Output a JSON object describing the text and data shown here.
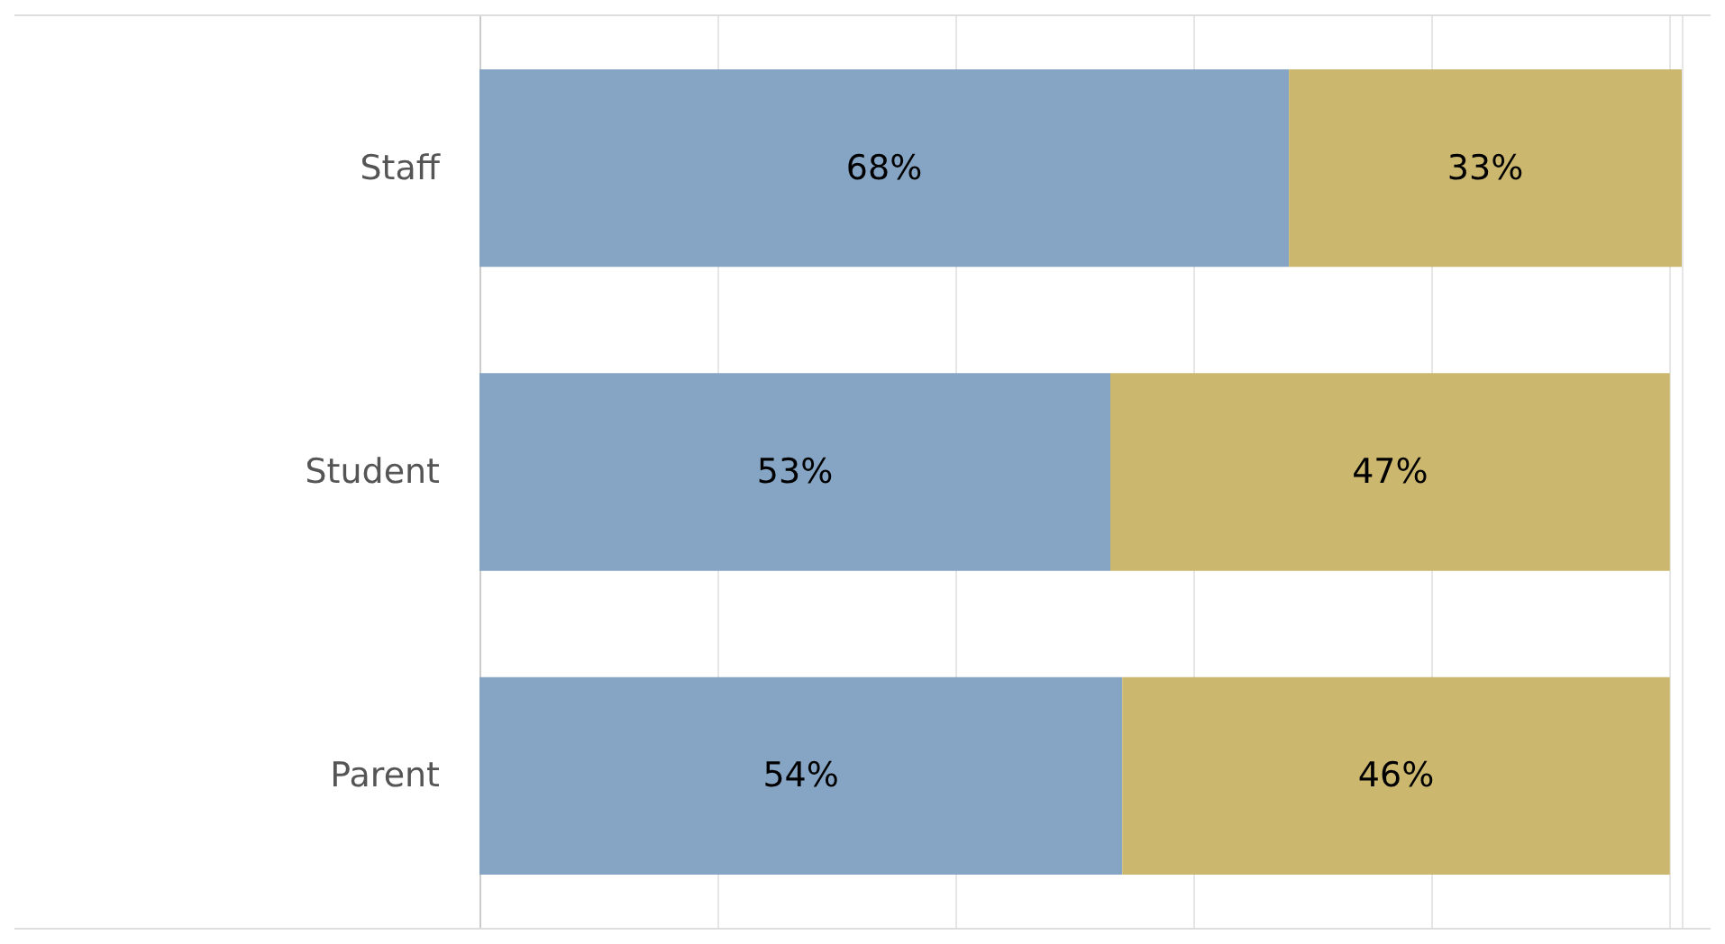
{
  "chart_data": {
    "type": "bar",
    "orientation": "horizontal",
    "stacked": true,
    "categories": [
      "Staff",
      "Student",
      "Parent"
    ],
    "series": [
      {
        "color": "#86a5c4",
        "values": [
          68,
          53,
          54
        ],
        "value_labels": [
          "68%",
          "53%",
          "54%"
        ]
      },
      {
        "color": "#ccb76e",
        "values": [
          33,
          47,
          46
        ],
        "value_labels": [
          "33%",
          "47%",
          "46%"
        ]
      }
    ],
    "tick_labels": "y",
    "grid": "x"
  }
}
